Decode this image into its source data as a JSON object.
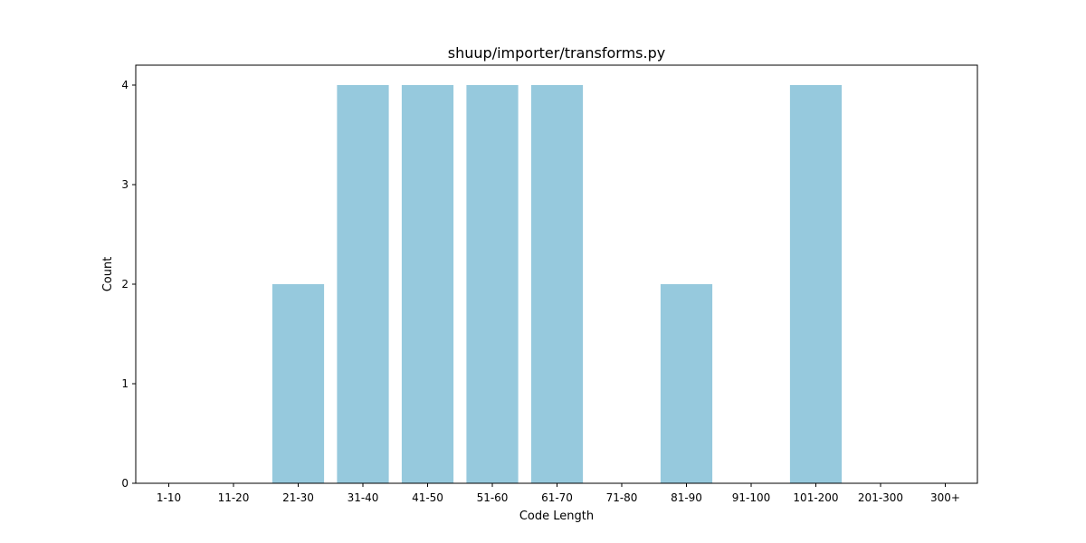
{
  "chart_data": {
    "type": "bar",
    "title": "shuup/importer/transforms.py",
    "xlabel": "Code Length",
    "ylabel": "Count",
    "categories": [
      "1-10",
      "11-20",
      "21-30",
      "31-40",
      "41-50",
      "51-60",
      "61-70",
      "71-80",
      "81-90",
      "91-100",
      "101-200",
      "201-300",
      "300+"
    ],
    "values": [
      0,
      0,
      2,
      4,
      4,
      4,
      4,
      0,
      2,
      0,
      4,
      0,
      0
    ],
    "ylim": [
      0,
      4.2
    ],
    "yticks": [
      0,
      1,
      2,
      3,
      4
    ],
    "bar_color": "#96c9dd",
    "grid": false,
    "legend": "none"
  }
}
